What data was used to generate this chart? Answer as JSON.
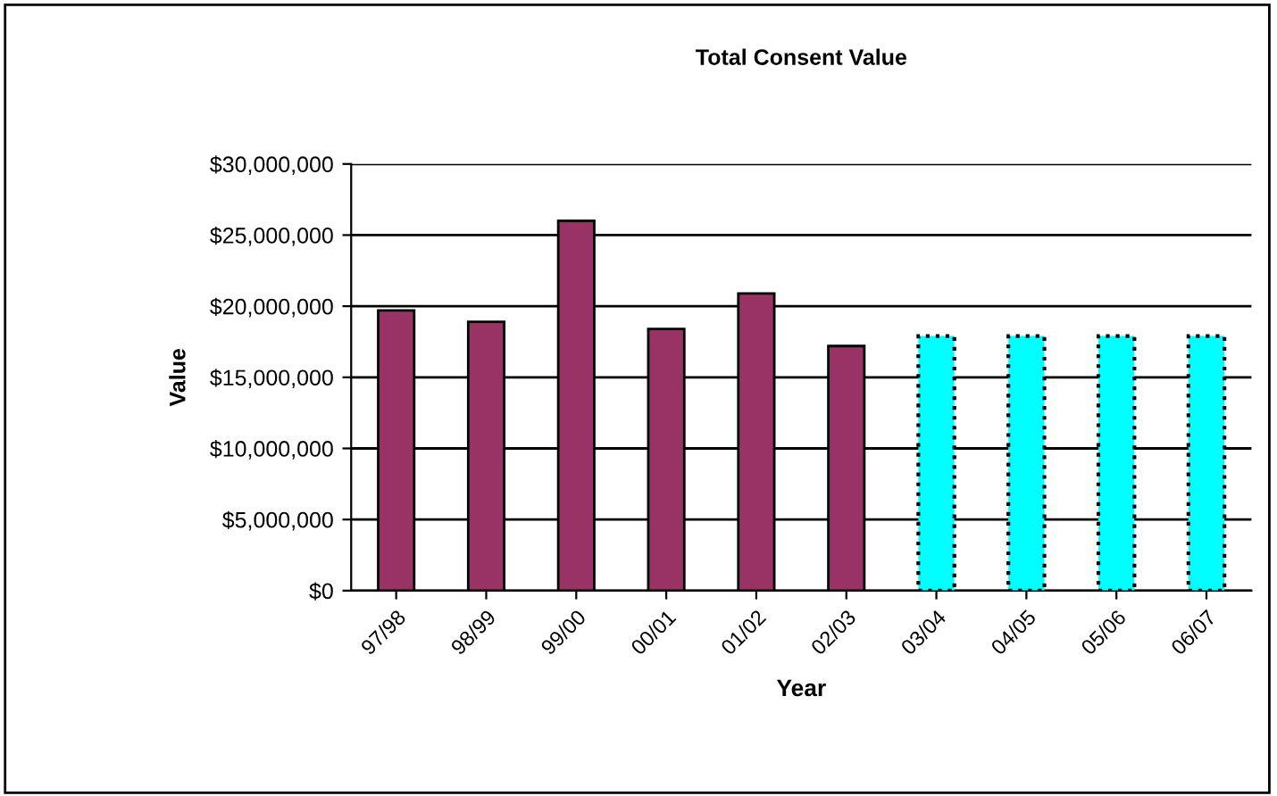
{
  "chart_data": {
    "type": "bar",
    "title": "Total Consent Value",
    "xlabel": "Year",
    "ylabel": "Value",
    "categories": [
      "97/98",
      "98/99",
      "99/00",
      "00/01",
      "01/02",
      "02/03",
      "03/04",
      "04/05",
      "05/06",
      "06/07"
    ],
    "series": [
      {
        "color": "#993366",
        "line_style": "solid",
        "values": [
          19700000,
          18900000,
          26000000,
          18400000,
          20900000,
          17200000,
          null,
          null,
          null,
          null
        ]
      },
      {
        "color": "#00ffff",
        "line_style": "dotted",
        "values": [
          null,
          null,
          null,
          null,
          null,
          null,
          17900000,
          17900000,
          17900000,
          17900000
        ]
      }
    ],
    "ylim": [
      0,
      30000000
    ],
    "yticks": [
      {
        "value": 0,
        "label": "$0"
      },
      {
        "value": 5000000,
        "label": "$5,000,000"
      },
      {
        "value": 10000000,
        "label": "$10,000,000"
      },
      {
        "value": 15000000,
        "label": "$15,000,000"
      },
      {
        "value": 20000000,
        "label": "$20,000,000"
      },
      {
        "value": 25000000,
        "label": "$25,000,000"
      },
      {
        "value": 30000000,
        "label": "$30,000,000"
      }
    ],
    "grid": "y",
    "legend": false
  }
}
